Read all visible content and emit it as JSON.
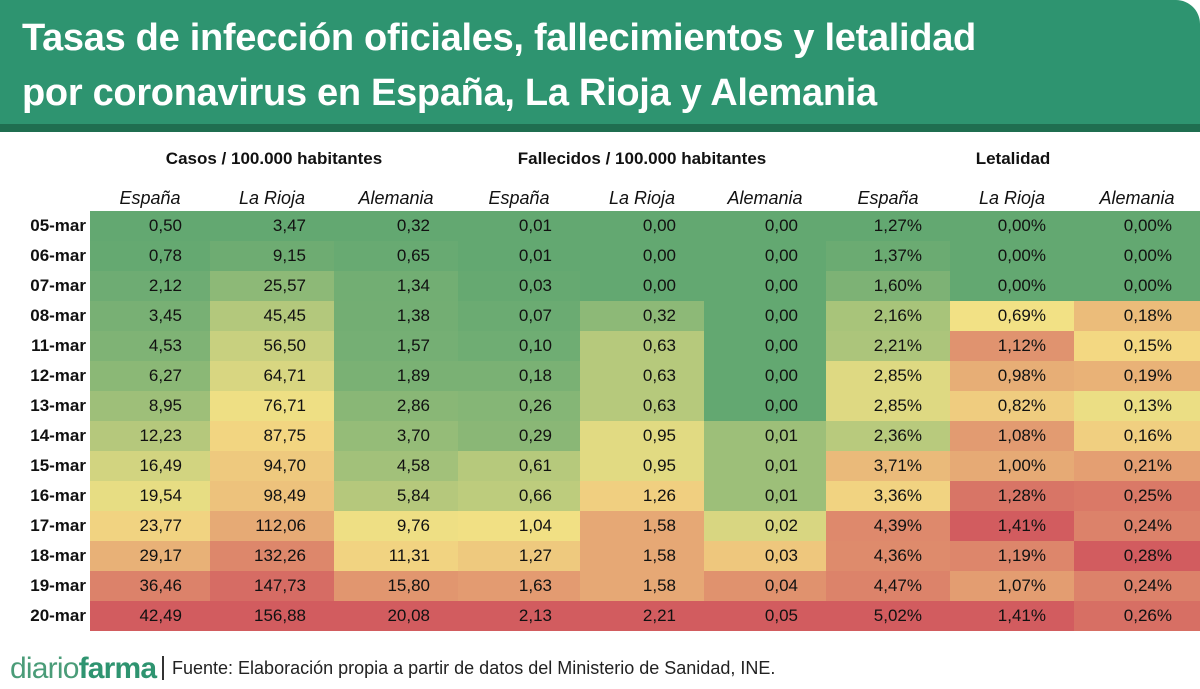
{
  "title": {
    "line1": "Tasas de infección oficiales, fallecimientos y letalidad",
    "line2": "por coronavirus en España, La Rioja y Alemania"
  },
  "footer": {
    "logo_part1": "diario",
    "logo_part2": "farma",
    "source": "Fuente:  Elaboración propia a partir de datos del Ministerio de Sanidad, INE."
  },
  "colors": {
    "banner": "#2e9470",
    "banner_strip": "#1f6e50",
    "scale_low": "#63a871",
    "scale_mid": "#f5e285",
    "scale_high": "#d25c5f"
  },
  "chart_data": {
    "type": "table",
    "title": "Tasas de infección oficiales, fallecimientos y letalidad por coronavirus en España, La Rioja y Alemania",
    "row_labels": [
      "05-mar",
      "06-mar",
      "07-mar",
      "08-mar",
      "11-mar",
      "12-mar",
      "13-mar",
      "14-mar",
      "15-mar",
      "16-mar",
      "17-mar",
      "18-mar",
      "19-mar",
      "20-mar"
    ],
    "groups": [
      {
        "name": "Casos / 100.000 habitantes",
        "columns": [
          {
            "name": "España",
            "values": [
              "0,50",
              "0,78",
              "2,12",
              "3,45",
              "4,53",
              "6,27",
              "8,95",
              "12,23",
              "16,49",
              "19,54",
              "23,77",
              "29,17",
              "36,46",
              "42,49"
            ]
          },
          {
            "name": "La Rioja",
            "values": [
              "3,47",
              "9,15",
              "25,57",
              "45,45",
              "56,50",
              "64,71",
              "76,71",
              "87,75",
              "94,70",
              "98,49",
              "112,06",
              "132,26",
              "147,73",
              "156,88"
            ]
          },
          {
            "name": "Alemania",
            "values": [
              "0,32",
              "0,65",
              "1,34",
              "1,38",
              "1,57",
              "1,89",
              "2,86",
              "3,70",
              "4,58",
              "5,84",
              "9,76",
              "11,31",
              "15,80",
              "20,08"
            ]
          }
        ]
      },
      {
        "name": "Fallecidos / 100.000 habitantes",
        "columns": [
          {
            "name": "España",
            "values": [
              "0,01",
              "0,01",
              "0,03",
              "0,07",
              "0,10",
              "0,18",
              "0,26",
              "0,29",
              "0,61",
              "0,66",
              "1,04",
              "1,27",
              "1,63",
              "2,13"
            ]
          },
          {
            "name": "La Rioja",
            "values": [
              "0,00",
              "0,00",
              "0,00",
              "0,32",
              "0,63",
              "0,63",
              "0,63",
              "0,95",
              "0,95",
              "1,26",
              "1,58",
              "1,58",
              "1,58",
              "2,21"
            ]
          },
          {
            "name": "Alemania",
            "values": [
              "0,00",
              "0,00",
              "0,00",
              "0,00",
              "0,00",
              "0,00",
              "0,00",
              "0,01",
              "0,01",
              "0,01",
              "0,02",
              "0,03",
              "0,04",
              "0,05"
            ]
          }
        ]
      },
      {
        "name": "Letalidad",
        "columns": [
          {
            "name": "España",
            "values": [
              "1,27%",
              "1,37%",
              "1,60%",
              "2,16%",
              "2,21%",
              "2,85%",
              "2,85%",
              "2,36%",
              "3,71%",
              "3,36%",
              "4,39%",
              "4,36%",
              "4,47%",
              "5,02%"
            ]
          },
          {
            "name": "La Rioja",
            "values": [
              "0,00%",
              "0,00%",
              "0,00%",
              "0,69%",
              "1,12%",
              "0,98%",
              "0,82%",
              "1,08%",
              "1,00%",
              "1,28%",
              "1,41%",
              "1,19%",
              "1,07%",
              "1,41%"
            ]
          },
          {
            "name": "Alemania",
            "values": [
              "0,00%",
              "0,00%",
              "0,00%",
              "0,18%",
              "0,15%",
              "0,19%",
              "0,13%",
              "0,16%",
              "0,21%",
              "0,25%",
              "0,24%",
              "0,28%",
              "0,24%",
              "0,26%"
            ]
          }
        ]
      }
    ]
  }
}
